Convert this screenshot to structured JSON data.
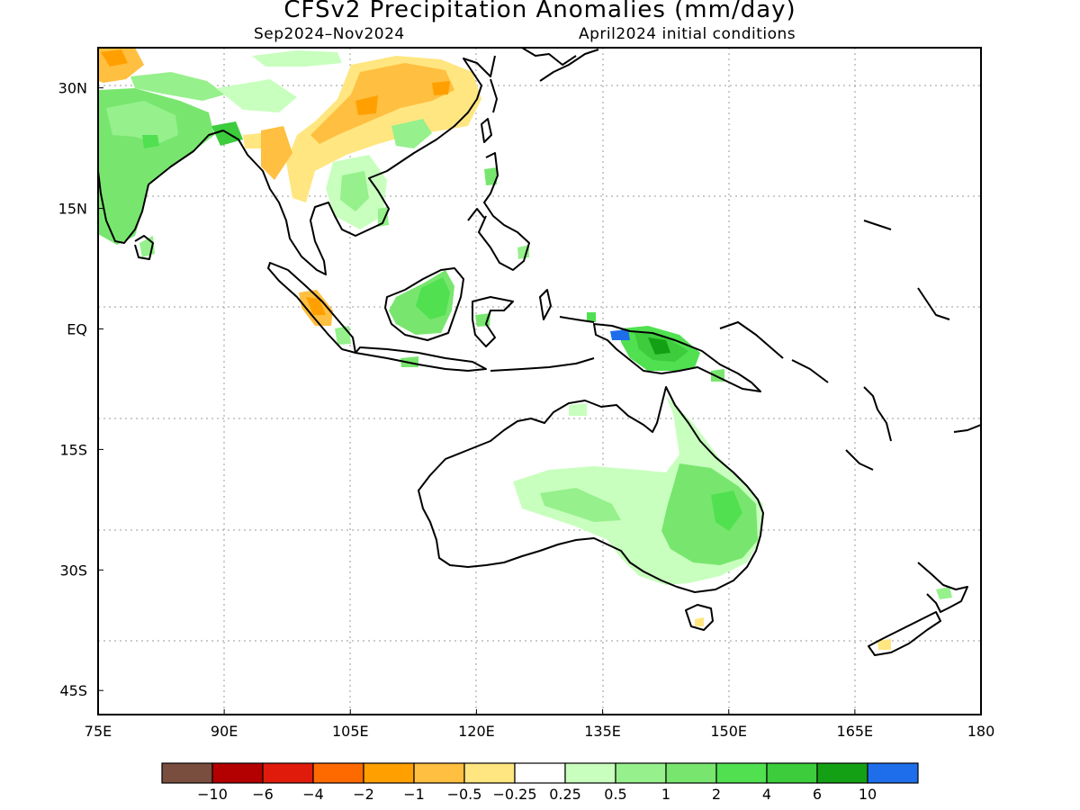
{
  "title": "CFSv2 Precipitation Anomalies (mm/day)",
  "subtitle_left": "Sep2024–Nov2024",
  "subtitle_right": "April2024 initial conditions",
  "map": {
    "lon_range": [
      75,
      180
    ],
    "lat_range": [
      -48,
      35
    ],
    "lon_ticks": [
      "75E",
      "90E",
      "105E",
      "120E",
      "135E",
      "150E",
      "165E",
      "180"
    ],
    "lat_ticks": [
      "30N",
      "15N",
      "EQ",
      "15S",
      "30S",
      "45S"
    ],
    "grid": true
  },
  "legend": {
    "colors": [
      "#7a4e3f",
      "#b30000",
      "#e01b0b",
      "#ff6a00",
      "#ffa000",
      "#ffbf40",
      "#ffe680",
      "#ffffff",
      "#c8ffbe",
      "#96f08c",
      "#78e66e",
      "#50e050",
      "#3ccc3c",
      "#14a014",
      "#1e6eeb"
    ],
    "labels": [
      "-10",
      "-6",
      "-4",
      "-2",
      "-1",
      "-0.5",
      "-0.25",
      "0.25",
      "0.5",
      "1",
      "2",
      "4",
      "6",
      "10"
    ]
  }
}
